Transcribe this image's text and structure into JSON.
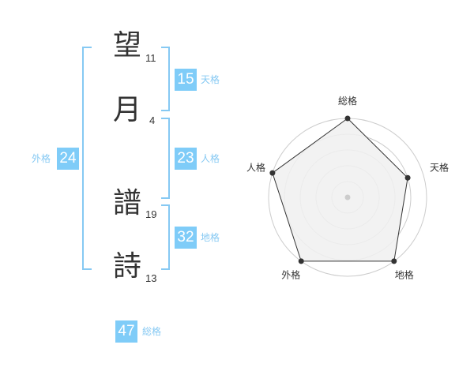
{
  "name": {
    "characters": [
      {
        "char": "望",
        "strokes": "11"
      },
      {
        "char": "月",
        "strokes": "4"
      },
      {
        "char": "譜",
        "strokes": "19"
      },
      {
        "char": "詩",
        "strokes": "13"
      }
    ]
  },
  "kaku": {
    "tenkaku": {
      "label": "天格",
      "value": "15"
    },
    "jinkaku": {
      "label": "人格",
      "value": "23"
    },
    "chikaku": {
      "label": "地格",
      "value": "32"
    },
    "gaikaku": {
      "label": "外格",
      "value": "24"
    },
    "soukaku": {
      "label": "総格",
      "value": "47"
    }
  },
  "colors": {
    "accent": "#7fccf8",
    "label": "#86c9f3",
    "fill": "#f0f0f0",
    "line": "#333333",
    "grid": "#cccccc"
  },
  "chart_data": {
    "type": "radar",
    "categories": [
      "総格",
      "天格",
      "地格",
      "外格",
      "人格"
    ],
    "values": [
      5,
      4,
      5,
      5,
      5
    ],
    "range": [
      0,
      5
    ],
    "grid": true,
    "grid_levels": 5
  }
}
